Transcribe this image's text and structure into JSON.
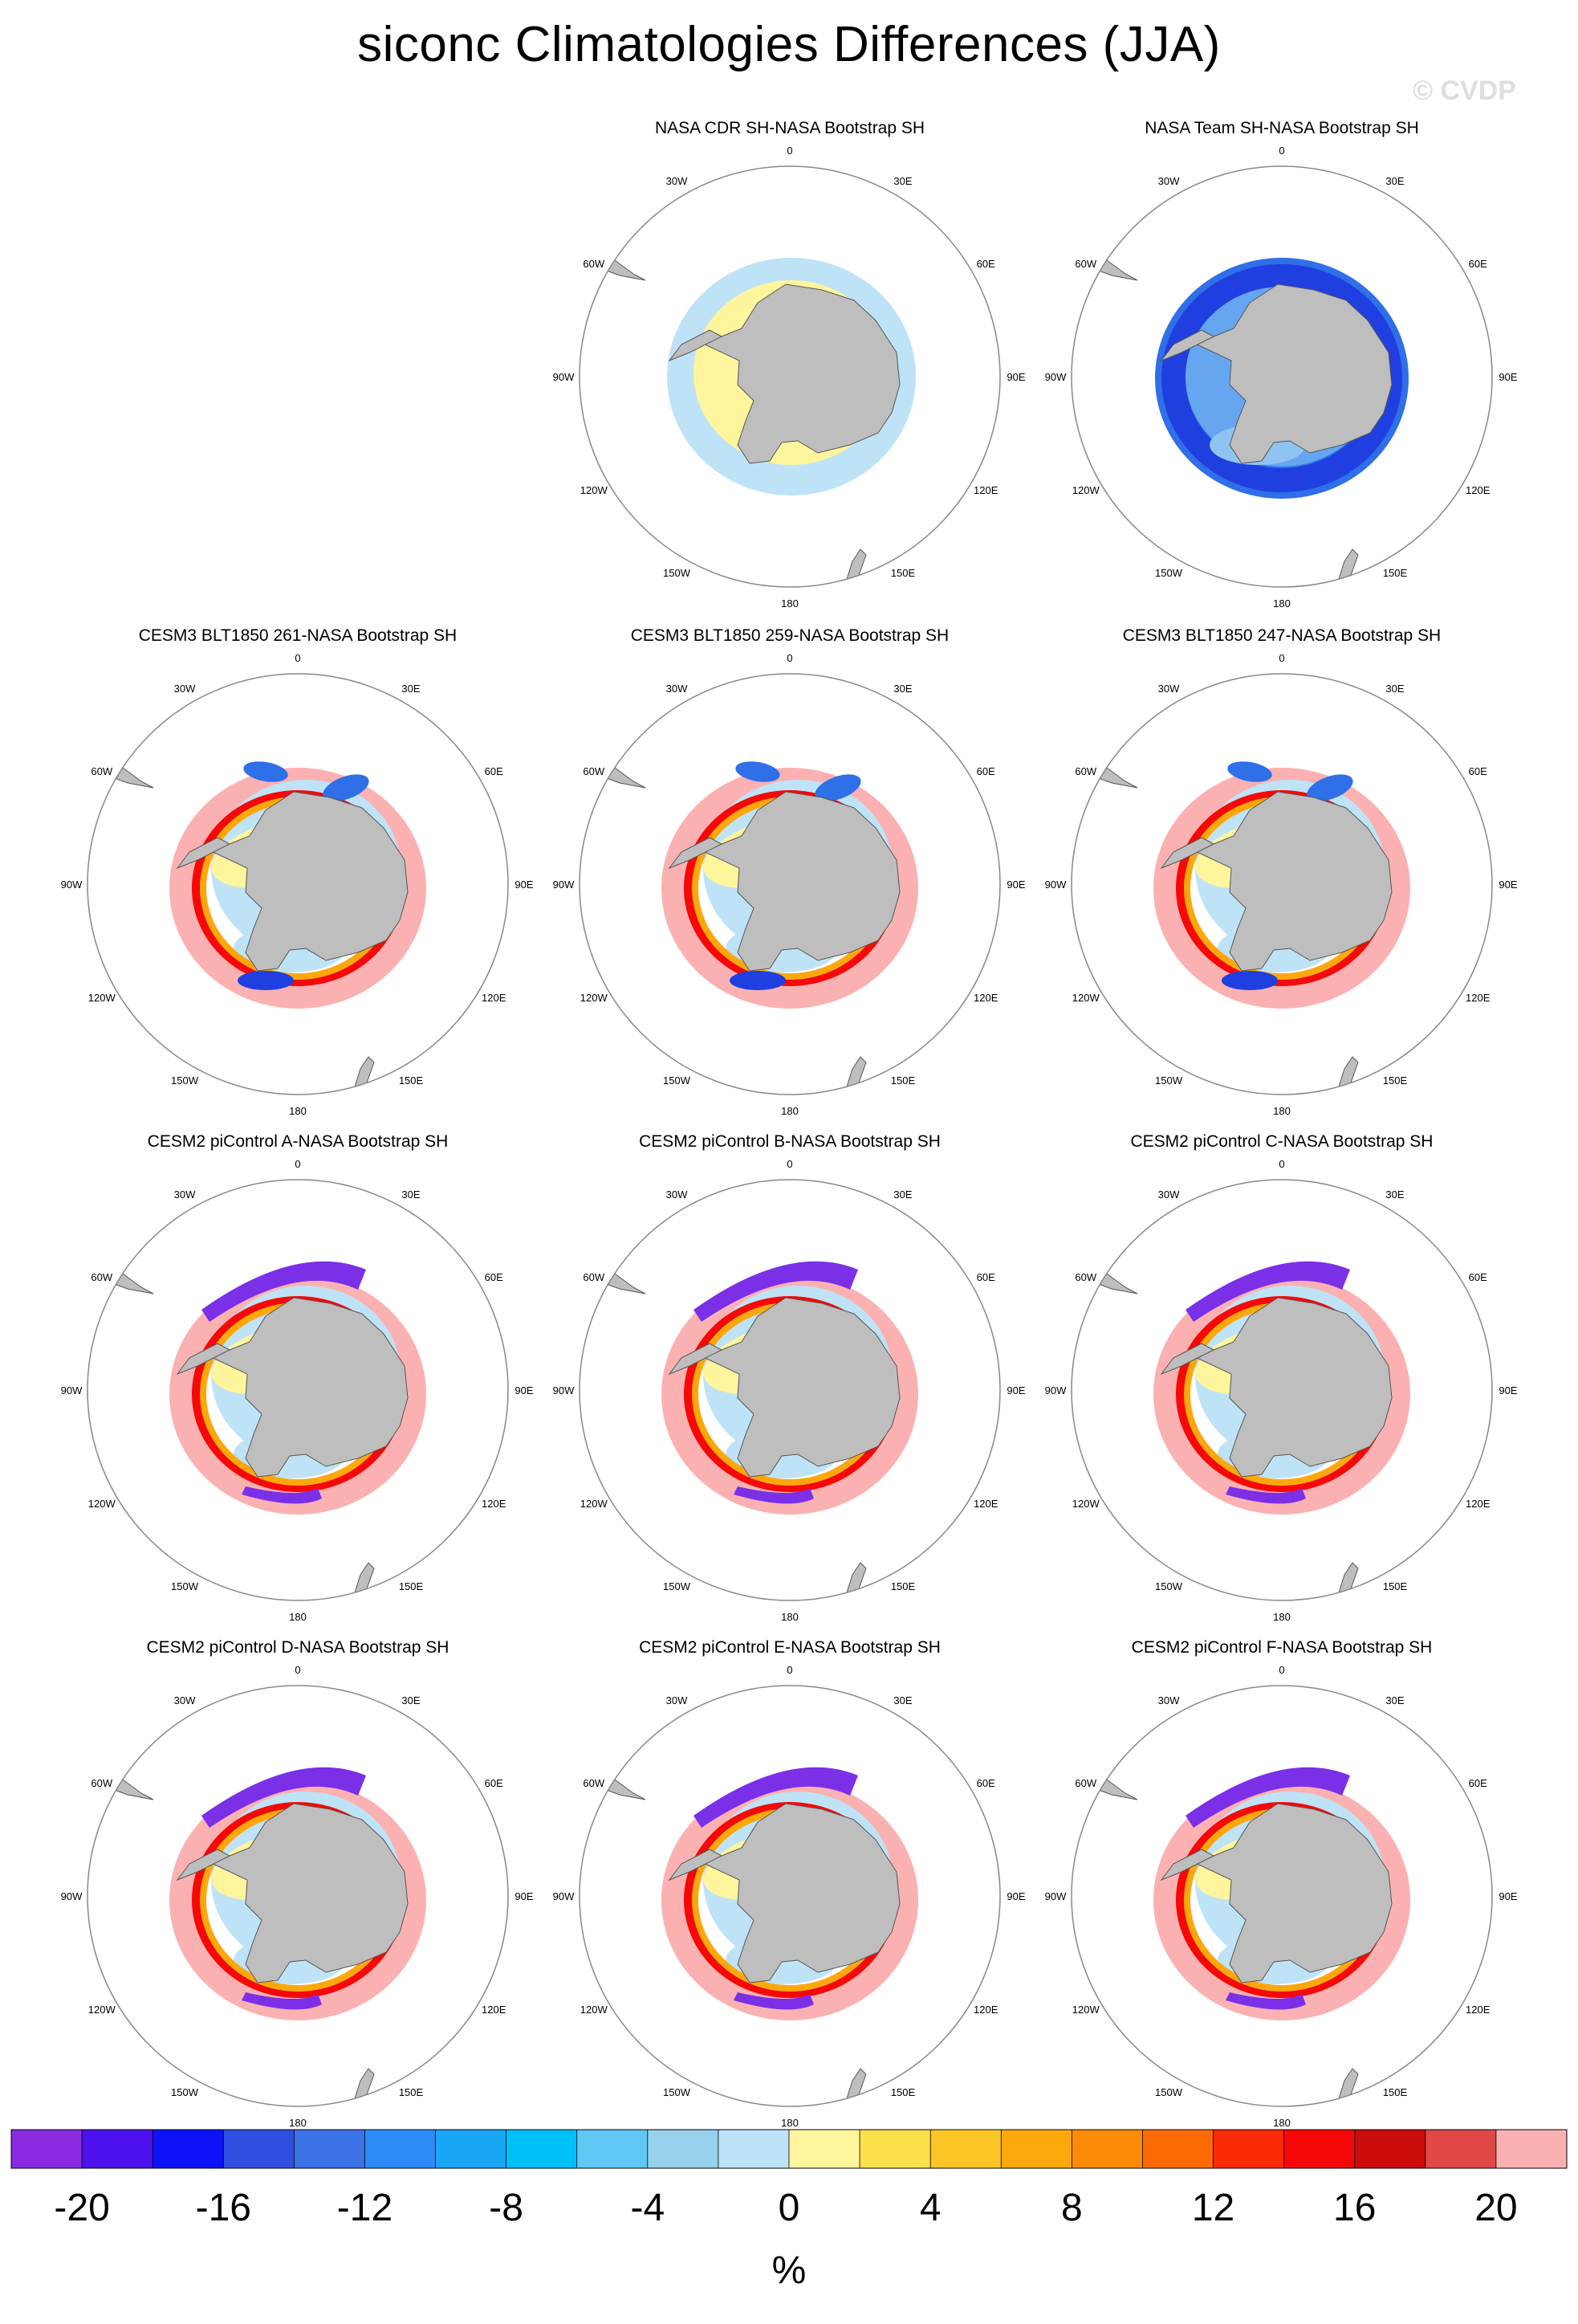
{
  "title": "siconc Climatologies Differences (JJA)",
  "credit": "© CVDP",
  "map": {
    "projection": "south-polar-stereographic",
    "region": "Southern Ocean / Antarctica",
    "lon_labels": [
      "0",
      "30E",
      "60E",
      "90E",
      "120E",
      "150E",
      "180",
      "150W",
      "120W",
      "90W",
      "60W",
      "30W"
    ],
    "land_color": "#bebebe"
  },
  "panels": [
    {
      "title": "NASA CDR SH-NASA Bootstrap SH",
      "pattern": "cdr"
    },
    {
      "title": "NASA Team SH-NASA Bootstrap SH",
      "pattern": "team"
    },
    {
      "title": "CESM3 BLT1850 261-NASA Bootstrap SH",
      "pattern": "cesm3"
    },
    {
      "title": "CESM3 BLT1850 259-NASA Bootstrap SH",
      "pattern": "cesm3"
    },
    {
      "title": "CESM3 BLT1850 247-NASA Bootstrap SH",
      "pattern": "cesm3"
    },
    {
      "title": "CESM2 piControl A-NASA Bootstrap SH",
      "pattern": "cesm2"
    },
    {
      "title": "CESM2 piControl B-NASA Bootstrap SH",
      "pattern": "cesm2"
    },
    {
      "title": "CESM2 piControl C-NASA Bootstrap SH",
      "pattern": "cesm2"
    },
    {
      "title": "CESM2 piControl D-NASA Bootstrap SH",
      "pattern": "cesm2"
    },
    {
      "title": "CESM2 piControl E-NASA Bootstrap SH",
      "pattern": "cesm2"
    },
    {
      "title": "CESM2 piControl F-NASA Bootstrap SH",
      "pattern": "cesm2"
    }
  ],
  "colorbar": {
    "unit": "%",
    "colors": [
      "#8a2be2",
      "#4b12ee",
      "#0e12f7",
      "#2f4fe0",
      "#3b72e6",
      "#2c8bf5",
      "#18a6f5",
      "#00c0f8",
      "#5fc8f5",
      "#97d1ee",
      "#bfe3f6",
      "#fff59d",
      "#fbe04c",
      "#fcc526",
      "#fca80c",
      "#fc8c08",
      "#fc6a05",
      "#fc2a05",
      "#f60808",
      "#cc0b0b",
      "#e04848",
      "#fbb1b1"
    ],
    "tick_labels": [
      "-20",
      "-16",
      "-12",
      "-8",
      "-4",
      "0",
      "4",
      "8",
      "12",
      "16",
      "20"
    ]
  },
  "palette_keys": {
    "yellow": "#fff59d",
    "lightblue": "#bfe3f6",
    "blue": "#2f6fe8",
    "darkblue": "#1f3fe0",
    "purple": "#7b2fe6",
    "red": "#f60808",
    "darkred": "#cc0b0b",
    "pink": "#fbb1b1",
    "orange": "#fca80c"
  }
}
